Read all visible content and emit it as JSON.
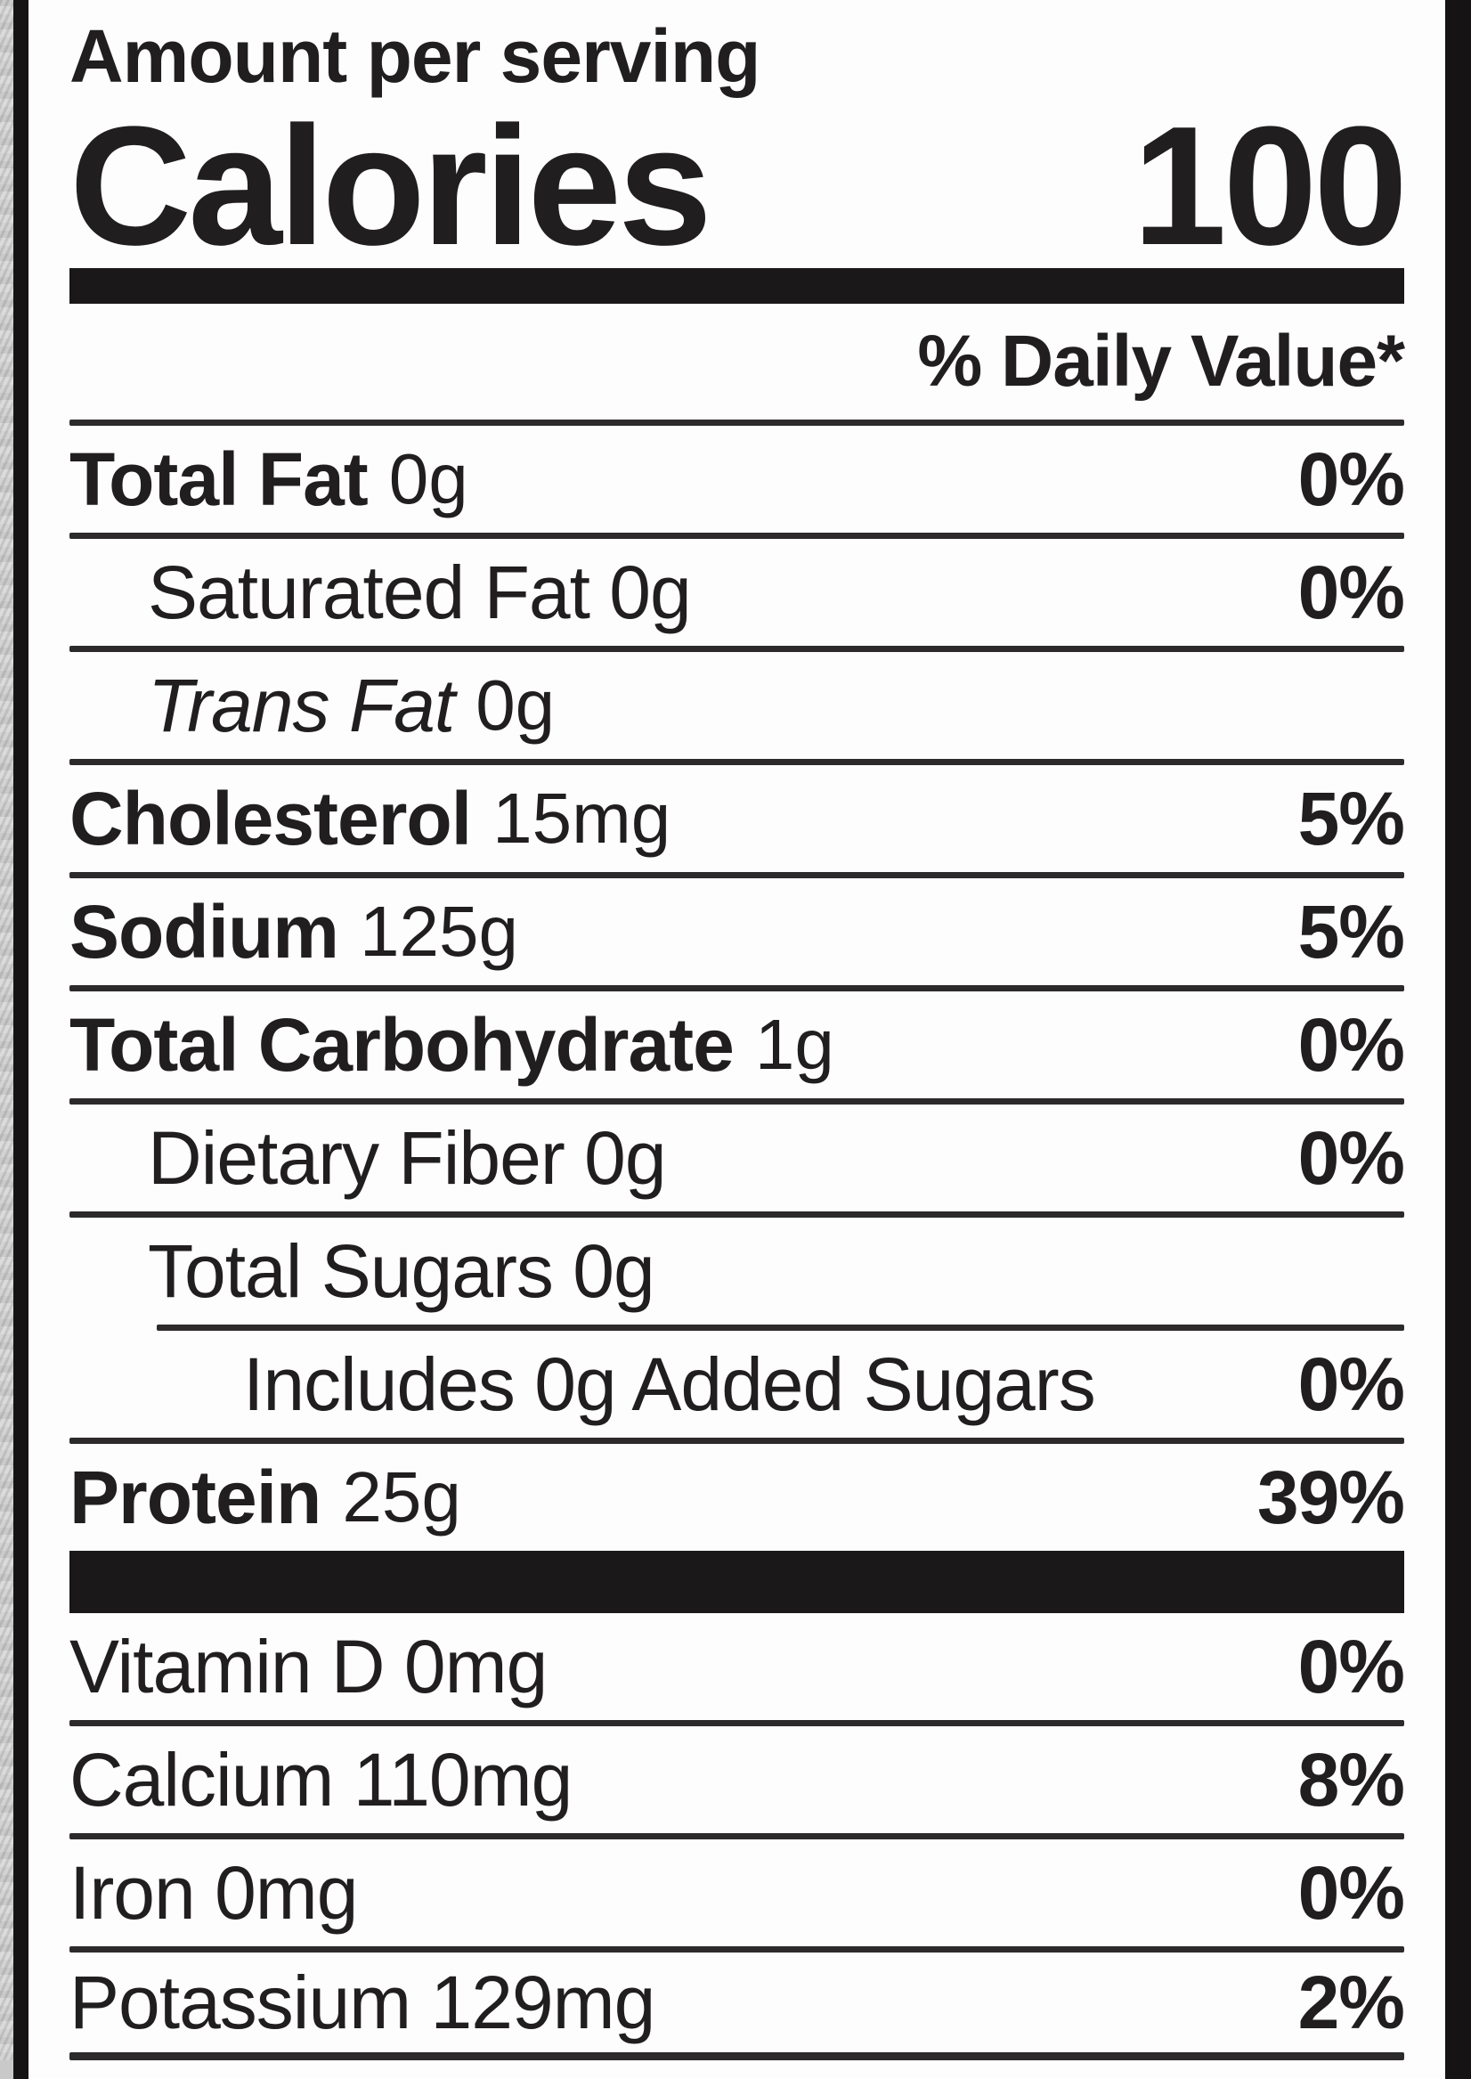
{
  "header": {
    "amount_per_serving": "Amount per serving",
    "calories_label": "Calories",
    "calories_value": "100",
    "daily_value_header": "% Daily Value*"
  },
  "rows": [
    {
      "label": "Total Fat",
      "amount": "0g",
      "dv": "0%"
    },
    {
      "label": "Saturated Fat 0g",
      "amount": "",
      "dv": "0%"
    },
    {
      "label": "Trans Fat",
      "amount": "0g",
      "dv": ""
    },
    {
      "label": "Cholesterol",
      "amount": "15mg",
      "dv": "5%"
    },
    {
      "label": "Sodium",
      "amount": "125g",
      "dv": "5%"
    },
    {
      "label": "Total Carbohydrate",
      "amount": "1g",
      "dv": "0%"
    },
    {
      "label": "Dietary Fiber 0g",
      "amount": "",
      "dv": "0%"
    },
    {
      "label": "Total Sugars 0g",
      "amount": "",
      "dv": ""
    },
    {
      "label": "Includes 0g Added Sugars",
      "amount": "",
      "dv": "0%"
    },
    {
      "label": "Protein",
      "amount": "25g",
      "dv": "39%"
    }
  ],
  "micronutrients": [
    {
      "label": "Vitamin D 0mg",
      "dv": "0%"
    },
    {
      "label": "Calcium 110mg",
      "dv": "8%"
    },
    {
      "label": "Iron 0mg",
      "dv": "0%"
    },
    {
      "label": "Potassium 129mg",
      "dv": "2%"
    }
  ],
  "colors": {
    "text": "#211e1f",
    "bar": "#1b1819",
    "separator": "#2d2a2b",
    "label_background": "#fdfdfd",
    "page_background": "#c9c9c9"
  }
}
